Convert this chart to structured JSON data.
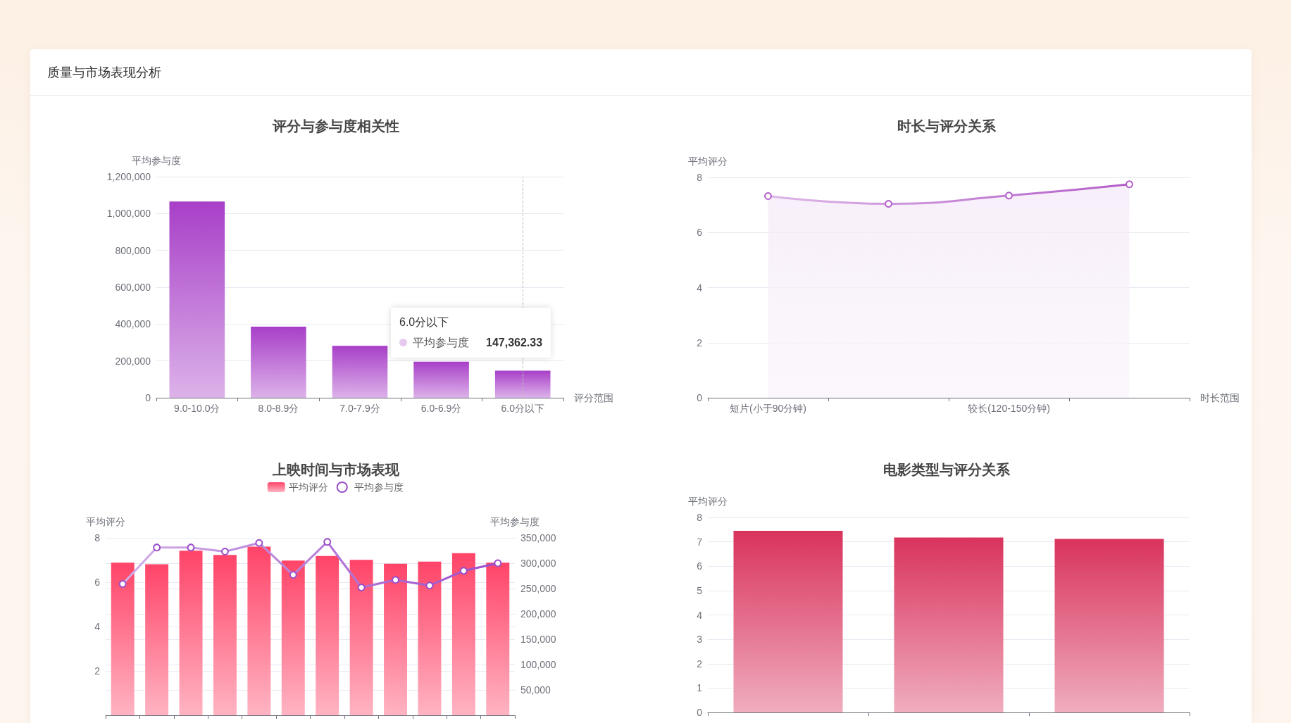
{
  "chart_data": [
    {
      "type": "other",
      "title": "质量与市场表现分析"
    },
    {
      "type": "bar",
      "title": "评分与参与度相关性",
      "xlabel": "评分范围",
      "ylabel": "平均参与度",
      "categories": [
        "9.0-10.0分",
        "8.0-8.9分",
        "7.0-7.9分",
        "6.0-6.9分",
        "6.0分以下"
      ],
      "series": [
        {
          "name": "平均参与度",
          "color": "#a83fc8",
          "values": [
            1065000,
            386000,
            282000,
            196000,
            147362.33
          ],
          "value_labels": [
            null,
            null,
            null,
            null,
            "147,362.33"
          ]
        }
      ],
      "ylim": [
        0,
        1200000
      ],
      "yticks": [
        0,
        {
          "value": 200000,
          "label": "200,000"
        },
        {
          "value": 400000,
          "label": "400,000"
        },
        {
          "value": 600000,
          "label": "600,000"
        },
        {
          "value": 800000,
          "label": "800,000"
        },
        {
          "value": 1000000,
          "label": "1,000,000"
        },
        {
          "value": 1200000,
          "label": "1,200,000"
        }
      ],
      "grid": "y",
      "ref_lines": [
        {
          "axis": "x",
          "value": "6.0分以下",
          "color": "#bfbfbf",
          "line_style": "dashed"
        }
      ]
    },
    {
      "type": "area",
      "title": "时长与评分关系",
      "xlabel": "时长范围",
      "ylabel": "平均评分",
      "categories": [
        "短片(小于90分钟)",
        null,
        "较长(120-150分钟)",
        null
      ],
      "series": [
        {
          "color": "#b35ec9",
          "values": [
            7.32,
            7.04,
            7.34,
            7.75
          ]
        }
      ],
      "ylim": [
        0,
        8
      ],
      "yticks": [
        0,
        2,
        4,
        6,
        8
      ],
      "grid": "y",
      "marker": "circle"
    },
    {
      "type": "bar",
      "title": "上映时间与市场表现",
      "ylabel": "平均评分",
      "y2label": "平均参与度",
      "categories": [
        null,
        null,
        null,
        null,
        null,
        null,
        null,
        null,
        null,
        null,
        null,
        null
      ],
      "series": [
        {
          "name": "平均评分",
          "type": "bar",
          "color": "#ff4468",
          "values": [
            6.88,
            6.81,
            7.42,
            7.23,
            7.6,
            6.98,
            7.18,
            7.01,
            6.83,
            6.93,
            7.31,
            6.88
          ]
        },
        {
          "name": "平均参与度",
          "type": "line",
          "axis": "y2",
          "color": "#9b4dca",
          "values": [
            259000,
            331000,
            331000,
            323000,
            340000,
            277000,
            342000,
            252000,
            267000,
            256000,
            285000,
            300000
          ]
        }
      ],
      "ylim": [
        0,
        8
      ],
      "yticks": [
        2,
        4,
        6,
        8
      ],
      "y2lim": [
        0,
        350000
      ],
      "y2ticks": [
        {
          "value": 50000,
          "label": "50,000"
        },
        {
          "value": 100000,
          "label": "100,000"
        },
        {
          "value": 150000,
          "label": "150,000"
        },
        {
          "value": 200000,
          "label": "200,000"
        },
        {
          "value": 250000,
          "label": "250,000"
        },
        {
          "value": 300000,
          "label": "300,000"
        },
        {
          "value": 350000,
          "label": "350,000"
        }
      ],
      "grid": "y",
      "legend": "top",
      "marker": "circle"
    },
    {
      "type": "bar",
      "title": "电影类型与评分关系",
      "ylabel": "平均评分",
      "categories": [
        null,
        null,
        null
      ],
      "series": [
        {
          "color": "#d9335d",
          "values": [
            7.45,
            7.18,
            7.12
          ]
        }
      ],
      "ylim": [
        0,
        8
      ],
      "yticks": [
        0,
        1,
        2,
        3,
        4,
        5,
        6,
        7,
        8
      ],
      "grid": "y"
    }
  ]
}
